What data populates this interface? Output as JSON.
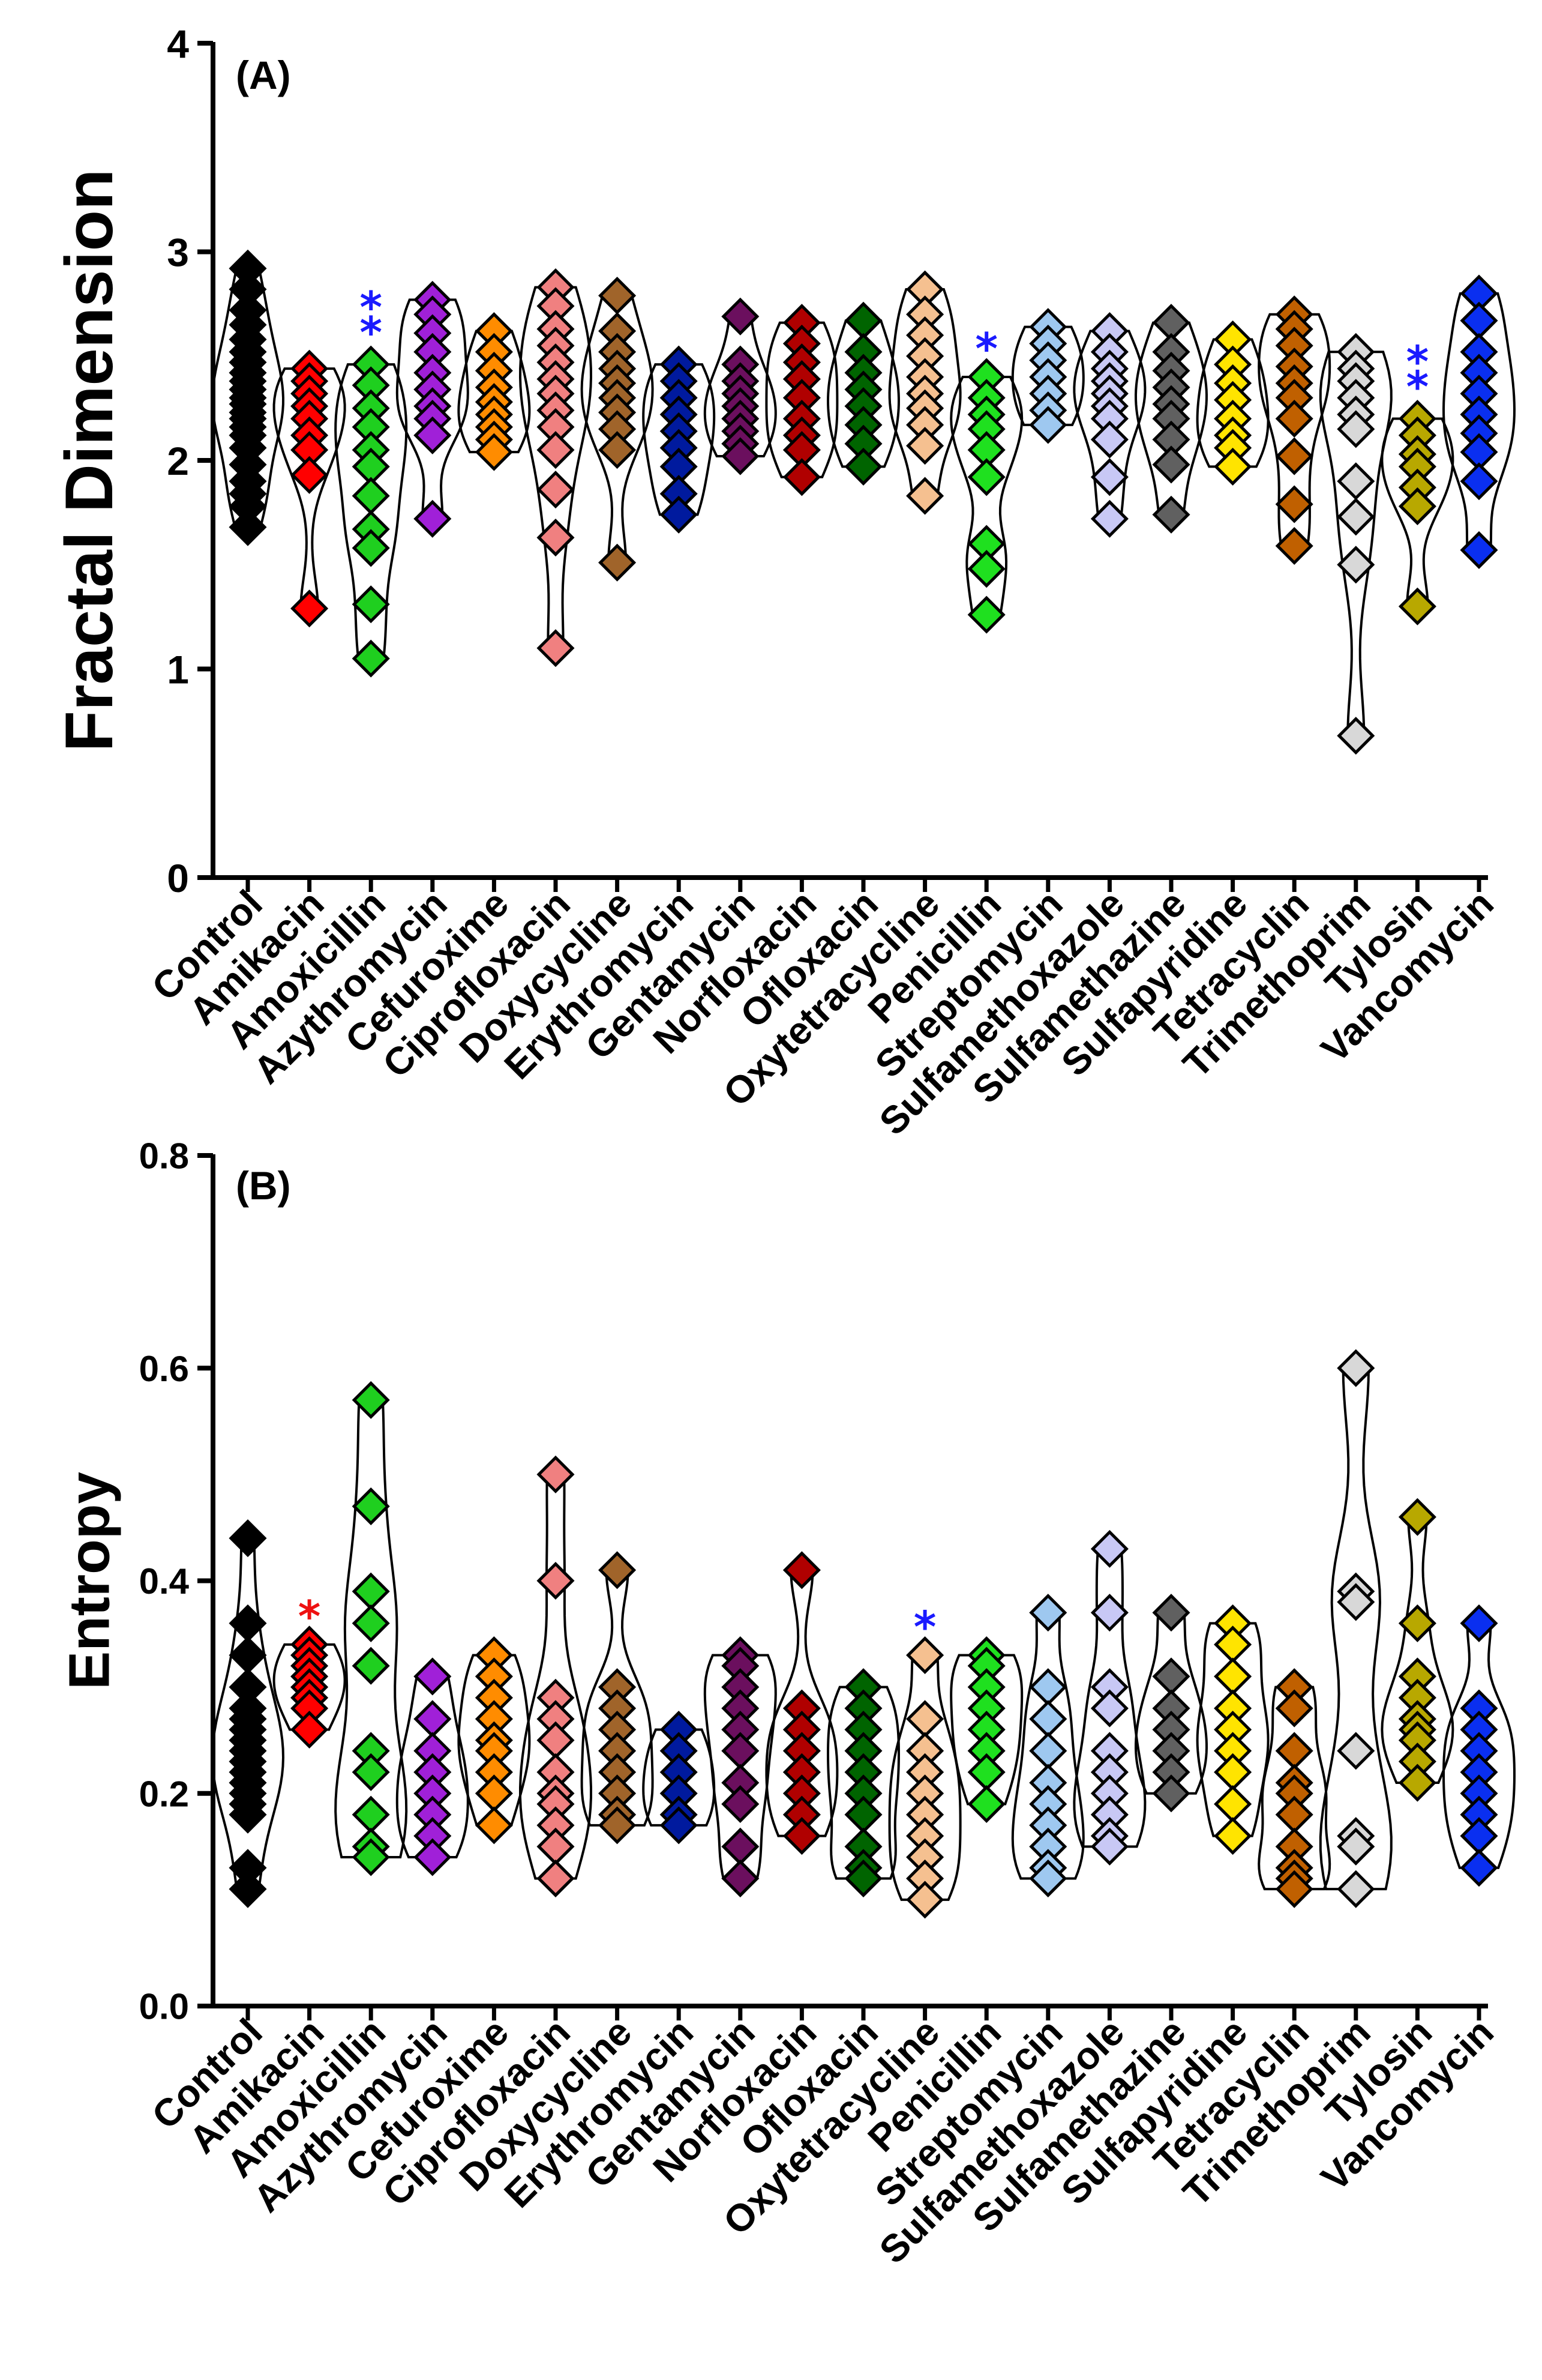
{
  "chart_data": [
    {
      "type": "violin-scatter",
      "panel_label": "(A)",
      "title": "",
      "xlabel": "",
      "ylabel": "Fractal Dimension",
      "ylim": [
        0,
        4
      ],
      "yticks": [
        0,
        1,
        2,
        3,
        4
      ],
      "tick_labels": [
        "0",
        "1",
        "2",
        "3",
        "4"
      ],
      "categories": [
        "Control",
        "Amikacin",
        "Amoxicillin",
        "Azythromycin",
        "Cefuroxime",
        "Ciprofloxacin",
        "Doxycycline",
        "Erythromycin",
        "Gentamycin",
        "Norfloxacin",
        "Ofloxacin",
        "Oxytetracycline",
        "Penicillin",
        "Streptomycin",
        "Sulfamethoxazole",
        "Sulfamethazine",
        "Sulfapyridine",
        "Tetracyclin",
        "Trimethoprim",
        "Tylosin",
        "Vancomycin"
      ],
      "series": [
        {
          "name": "Control",
          "color": "#000000",
          "values": [
            2.92,
            2.82,
            2.72,
            2.65,
            2.58,
            2.52,
            2.47,
            2.42,
            2.38,
            2.34,
            2.3,
            2.27,
            2.23,
            2.2,
            2.16,
            2.12,
            2.06,
            1.98,
            1.9,
            1.84,
            1.78,
            1.68
          ]
        },
        {
          "name": "Amikacin",
          "color": "#ff0000",
          "values": [
            2.44,
            2.38,
            2.32,
            2.26,
            2.2,
            2.12,
            2.05,
            1.93,
            1.29
          ]
        },
        {
          "name": "Amoxicillin",
          "color": "#1fcf1f",
          "values": [
            2.46,
            2.36,
            2.25,
            2.16,
            2.05,
            1.97,
            1.83,
            1.67,
            1.58,
            1.31,
            1.05
          ]
        },
        {
          "name": "Azythromycin",
          "color": "#a020d8",
          "values": [
            2.77,
            2.7,
            2.61,
            2.52,
            2.42,
            2.34,
            2.26,
            2.2,
            2.12,
            1.72
          ]
        },
        {
          "name": "Cefuroxime",
          "color": "#ff8c00",
          "values": [
            2.62,
            2.52,
            2.43,
            2.35,
            2.28,
            2.22,
            2.16,
            2.1,
            2.04
          ]
        },
        {
          "name": "Ciprofloxacin",
          "color": "#f08080",
          "values": [
            2.83,
            2.74,
            2.63,
            2.55,
            2.47,
            2.39,
            2.32,
            2.24,
            2.16,
            2.05,
            1.86,
            1.63,
            1.1
          ]
        },
        {
          "name": "Doxycycline",
          "color": "#a0642a",
          "values": [
            2.79,
            2.62,
            2.52,
            2.44,
            2.37,
            2.3,
            2.23,
            2.15,
            2.05,
            1.51
          ]
        },
        {
          "name": "Erythromycin",
          "color": "#001a9e",
          "values": [
            2.46,
            2.38,
            2.3,
            2.22,
            2.14,
            2.06,
            1.97,
            1.84,
            1.74
          ]
        },
        {
          "name": "Gentamycin",
          "color": "#6b0f5e",
          "values": [
            2.69,
            2.46,
            2.38,
            2.32,
            2.26,
            2.2,
            2.14,
            2.08,
            2.02
          ]
        },
        {
          "name": "Norfloxacin",
          "color": "#b00000",
          "values": [
            2.66,
            2.56,
            2.47,
            2.39,
            2.3,
            2.2,
            2.12,
            2.05,
            1.92
          ]
        },
        {
          "name": "Ofloxacin",
          "color": "#006400",
          "values": [
            2.67,
            2.52,
            2.42,
            2.34,
            2.26,
            2.17,
            2.08,
            1.97
          ]
        },
        {
          "name": "Oxytetracycline",
          "color": "#f5c090",
          "values": [
            2.82,
            2.7,
            2.6,
            2.5,
            2.4,
            2.32,
            2.25,
            2.17,
            2.07,
            1.83
          ]
        },
        {
          "name": "Penicillin",
          "color": "#1fe01f",
          "values": [
            2.4,
            2.3,
            2.22,
            2.15,
            2.05,
            1.92,
            1.6,
            1.48,
            1.26
          ]
        },
        {
          "name": "Streptomycin",
          "color": "#9ec8f0",
          "values": [
            2.64,
            2.56,
            2.48,
            2.4,
            2.32,
            2.24,
            2.17
          ]
        },
        {
          "name": "Sulfamethoxazole",
          "color": "#c8c8f5",
          "values": [
            2.62,
            2.52,
            2.44,
            2.38,
            2.32,
            2.26,
            2.2,
            2.1,
            1.92,
            1.72
          ]
        },
        {
          "name": "Sulfamethazine",
          "color": "#606060",
          "values": [
            2.66,
            2.52,
            2.43,
            2.35,
            2.27,
            2.2,
            2.1,
            1.98,
            1.74
          ]
        },
        {
          "name": "Sulfapyridine",
          "color": "#ffe400",
          "values": [
            2.58,
            2.46,
            2.37,
            2.29,
            2.2,
            2.12,
            2.06,
            1.97
          ]
        },
        {
          "name": "Tetracyclin",
          "color": "#c06000",
          "values": [
            2.7,
            2.63,
            2.55,
            2.45,
            2.37,
            2.3,
            2.2,
            2.02,
            1.79,
            1.59
          ]
        },
        {
          "name": "Trimethoprim",
          "color": "#d8d8d8",
          "values": [
            2.52,
            2.44,
            2.38,
            2.3,
            2.22,
            2.15,
            1.9,
            1.73,
            1.5,
            0.68
          ]
        },
        {
          "name": "Tylosin",
          "color": "#b8a800",
          "values": [
            2.2,
            2.12,
            2.03,
            1.97,
            1.87,
            1.78,
            1.3
          ]
        },
        {
          "name": "Vancomycin",
          "color": "#0a2ff0",
          "values": [
            2.8,
            2.67,
            2.52,
            2.42,
            2.32,
            2.22,
            2.13,
            2.04,
            1.9,
            1.57
          ]
        }
      ],
      "annotations": [
        {
          "category": "Amoxicillin",
          "text": "**",
          "color": "#1a1aff"
        },
        {
          "category": "Penicillin",
          "text": "*",
          "color": "#1a1aff"
        },
        {
          "category": "Tylosin",
          "text": "**",
          "color": "#1a1aff"
        }
      ]
    },
    {
      "type": "violin-scatter",
      "panel_label": "(B)",
      "title": "",
      "xlabel": "",
      "ylabel": "Entropy",
      "ylim": [
        0,
        0.8
      ],
      "yticks": [
        0,
        0.2,
        0.4,
        0.6,
        0.8
      ],
      "tick_labels": [
        "0.0",
        "0.2",
        "0.4",
        "0.6",
        "0.8"
      ],
      "categories": [
        "Control",
        "Amikacin",
        "Amoxicillin",
        "Azythromycin",
        "Cefuroxime",
        "Ciprofloxacin",
        "Doxycycline",
        "Erythromycin",
        "Gentamycin",
        "Norfloxacin",
        "Ofloxacin",
        "Oxytetracycline",
        "Penicillin",
        "Streptomycin",
        "Sulfamethoxazole",
        "Sulfamethazine",
        "Sulfapyridine",
        "Tetracyclin",
        "Trimethoprim",
        "Tylosin",
        "Vancomycin"
      ],
      "series": [
        {
          "name": "Control",
          "color": "#000000",
          "values": [
            0.44,
            0.36,
            0.33,
            0.3,
            0.28,
            0.27,
            0.26,
            0.25,
            0.24,
            0.23,
            0.22,
            0.21,
            0.2,
            0.19,
            0.18,
            0.13,
            0.11
          ]
        },
        {
          "name": "Amikacin",
          "color": "#ff0000",
          "values": [
            0.34,
            0.33,
            0.32,
            0.31,
            0.3,
            0.29,
            0.28,
            0.26
          ]
        },
        {
          "name": "Amoxicillin",
          "color": "#1fcf1f",
          "values": [
            0.57,
            0.47,
            0.39,
            0.36,
            0.32,
            0.24,
            0.22,
            0.18,
            0.15,
            0.14
          ]
        },
        {
          "name": "Azythromycin",
          "color": "#a020d8",
          "values": [
            0.31,
            0.27,
            0.24,
            0.22,
            0.2,
            0.18,
            0.16,
            0.14
          ]
        },
        {
          "name": "Cefuroxime",
          "color": "#ff8c00",
          "values": [
            0.33,
            0.31,
            0.29,
            0.27,
            0.25,
            0.24,
            0.22,
            0.2,
            0.17
          ]
        },
        {
          "name": "Ciprofloxacin",
          "color": "#f08080",
          "values": [
            0.5,
            0.4,
            0.29,
            0.27,
            0.25,
            0.22,
            0.2,
            0.19,
            0.17,
            0.15,
            0.12
          ]
        },
        {
          "name": "Doxycycline",
          "color": "#a0642a",
          "values": [
            0.41,
            0.3,
            0.28,
            0.26,
            0.24,
            0.22,
            0.2,
            0.18,
            0.17
          ]
        },
        {
          "name": "Erythromycin",
          "color": "#001a9e",
          "values": [
            0.26,
            0.24,
            0.22,
            0.2,
            0.18,
            0.17
          ]
        },
        {
          "name": "Gentamycin",
          "color": "#6b0f5e",
          "values": [
            0.33,
            0.32,
            0.3,
            0.28,
            0.26,
            0.24,
            0.21,
            0.19,
            0.15,
            0.12
          ]
        },
        {
          "name": "Norfloxacin",
          "color": "#b00000",
          "values": [
            0.41,
            0.28,
            0.26,
            0.24,
            0.22,
            0.2,
            0.18,
            0.16
          ]
        },
        {
          "name": "Ofloxacin",
          "color": "#006400",
          "values": [
            0.3,
            0.28,
            0.26,
            0.24,
            0.22,
            0.2,
            0.18,
            0.15,
            0.13,
            0.12
          ]
        },
        {
          "name": "Oxytetracycline",
          "color": "#f5c090",
          "values": [
            0.33,
            0.27,
            0.24,
            0.22,
            0.2,
            0.18,
            0.16,
            0.14,
            0.12,
            0.1
          ]
        },
        {
          "name": "Penicillin",
          "color": "#1fe01f",
          "values": [
            0.33,
            0.32,
            0.3,
            0.28,
            0.26,
            0.24,
            0.22,
            0.19
          ]
        },
        {
          "name": "Streptomycin",
          "color": "#9ec8f0",
          "values": [
            0.37,
            0.3,
            0.27,
            0.24,
            0.21,
            0.19,
            0.17,
            0.15,
            0.13,
            0.12
          ]
        },
        {
          "name": "Sulfamethoxazole",
          "color": "#c8c8f5",
          "values": [
            0.43,
            0.37,
            0.3,
            0.28,
            0.24,
            0.22,
            0.2,
            0.18,
            0.16,
            0.15
          ]
        },
        {
          "name": "Sulfamethazine",
          "color": "#606060",
          "values": [
            0.37,
            0.31,
            0.28,
            0.26,
            0.24,
            0.22,
            0.2
          ]
        },
        {
          "name": "Sulfapyridine",
          "color": "#ffe400",
          "values": [
            0.36,
            0.34,
            0.31,
            0.28,
            0.26,
            0.24,
            0.22,
            0.19,
            0.16
          ]
        },
        {
          "name": "Tetracyclin",
          "color": "#c06000",
          "values": [
            0.3,
            0.28,
            0.24,
            0.21,
            0.2,
            0.18,
            0.15,
            0.13,
            0.12,
            0.11
          ]
        },
        {
          "name": "Trimethoprim",
          "color": "#d8d8d8",
          "values": [
            0.6,
            0.39,
            0.38,
            0.24,
            0.16,
            0.15,
            0.11
          ]
        },
        {
          "name": "Tylosin",
          "color": "#b8a800",
          "values": [
            0.46,
            0.36,
            0.31,
            0.29,
            0.27,
            0.26,
            0.25,
            0.23,
            0.21
          ]
        },
        {
          "name": "Vancomycin",
          "color": "#0a2ff0",
          "values": [
            0.36,
            0.28,
            0.26,
            0.24,
            0.22,
            0.2,
            0.18,
            0.16,
            0.13
          ]
        }
      ],
      "annotations": [
        {
          "category": "Amikacin",
          "text": "*",
          "color": "#ee1111"
        },
        {
          "category": "Oxytetracycline",
          "text": "*",
          "color": "#1a1aff"
        }
      ]
    }
  ]
}
